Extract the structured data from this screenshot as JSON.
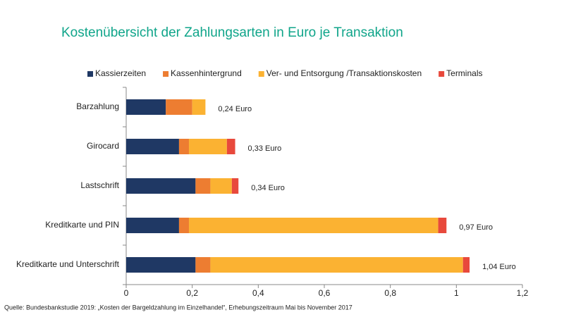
{
  "chart_data": {
    "type": "stacked-bar-horizontal",
    "title": "Kostenübersicht der Zahlungsarten in Euro je Transaktion",
    "categories": [
      "Barzahlung",
      "Girocard",
      "Lastschrift",
      "Kreditkarte und PIN",
      "Kreditkarte und Unterschrift"
    ],
    "series": [
      {
        "name": "Kassierzeiten",
        "color": "#1f3864",
        "values": [
          0.12,
          0.16,
          0.21,
          0.16,
          0.21
        ]
      },
      {
        "name": "Kassenhintergrund",
        "color": "#ed7d31",
        "values": [
          0.08,
          0.03,
          0.045,
          0.03,
          0.045
        ]
      },
      {
        "name": "Ver- und Entsorgung /Transaktionskosten",
        "color": "#fbb232",
        "values": [
          0.04,
          0.115,
          0.065,
          0.755,
          0.765
        ]
      },
      {
        "name": "Terminals",
        "color": "#e8493c",
        "values": [
          0,
          0.025,
          0.02,
          0.025,
          0.02
        ]
      }
    ],
    "totals": [
      0.24,
      0.33,
      0.34,
      0.97,
      1.04
    ],
    "total_labels": [
      "0,24 Euro",
      "0,33 Euro",
      "0,34 Euro",
      "0,97 Euro",
      "1,04 Euro"
    ],
    "xlim": [
      0,
      1.2
    ],
    "xticks": [
      0,
      {
        "value": 0.2,
        "label": "0,2"
      },
      {
        "value": 0.4,
        "label": "0,4"
      },
      {
        "value": 0.6,
        "label": "0,6"
      },
      {
        "value": 0.8,
        "label": "0,8"
      },
      1,
      {
        "value": 1.2,
        "label": "1,2"
      }
    ],
    "grid": false,
    "legend": "top",
    "source": "Quelle:  Bundesbankstudie   2019: „Kosten der Bargeldzahlung im Einzelhandel“, Erhebungszeitraum  Mai bis November 2017"
  }
}
